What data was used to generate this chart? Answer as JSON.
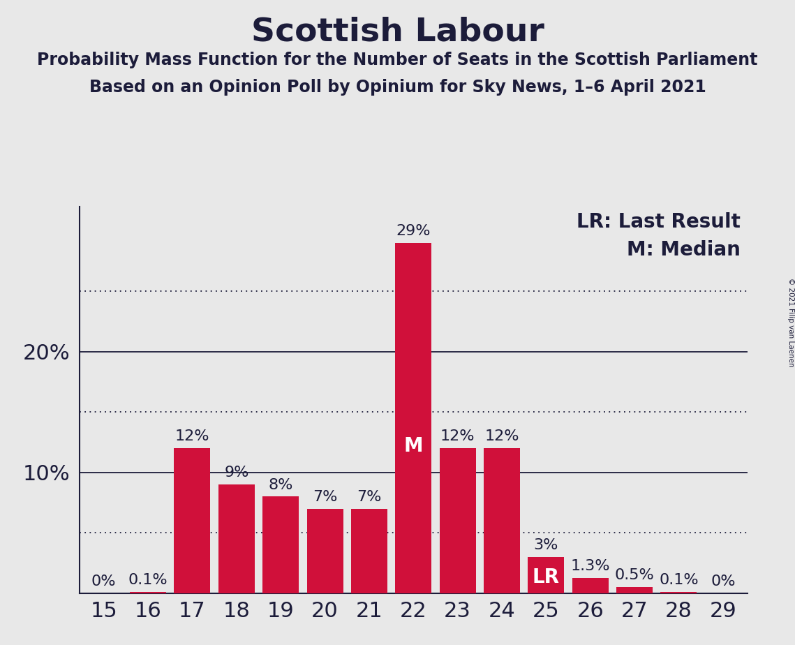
{
  "title": "Scottish Labour",
  "subtitle1": "Probability Mass Function for the Number of Seats in the Scottish Parliament",
  "subtitle2": "Based on an Opinion Poll by Opinium for Sky News, 1–6 April 2021",
  "copyright": "© 2021 Filip van Laenen",
  "legend_lr": "LR: Last Result",
  "legend_m": "M: Median",
  "seats": [
    15,
    16,
    17,
    18,
    19,
    20,
    21,
    22,
    23,
    24,
    25,
    26,
    27,
    28,
    29
  ],
  "values": [
    0.0,
    0.1,
    12.0,
    9.0,
    8.0,
    7.0,
    7.0,
    29.0,
    12.0,
    12.0,
    3.0,
    1.3,
    0.5,
    0.1,
    0.0
  ],
  "labels": [
    "0%",
    "0.1%",
    "12%",
    "9%",
    "8%",
    "7%",
    "7%",
    "29%",
    "12%",
    "12%",
    "3%",
    "1.3%",
    "0.5%",
    "0.1%",
    "0%"
  ],
  "bar_color": "#D0103A",
  "background_color": "#E8E8E8",
  "text_color": "#1C1C3A",
  "median_seat": 22,
  "last_result_seat": 25,
  "ylim": [
    0,
    32
  ],
  "solid_gridlines": [
    10,
    20
  ],
  "dotted_gridlines": [
    5,
    15,
    25
  ],
  "title_fontsize": 34,
  "subtitle_fontsize": 17,
  "tick_fontsize": 22,
  "ytick_fontsize": 22,
  "legend_fontsize": 20,
  "bar_label_fontsize": 16,
  "inbar_fontsize": 20
}
